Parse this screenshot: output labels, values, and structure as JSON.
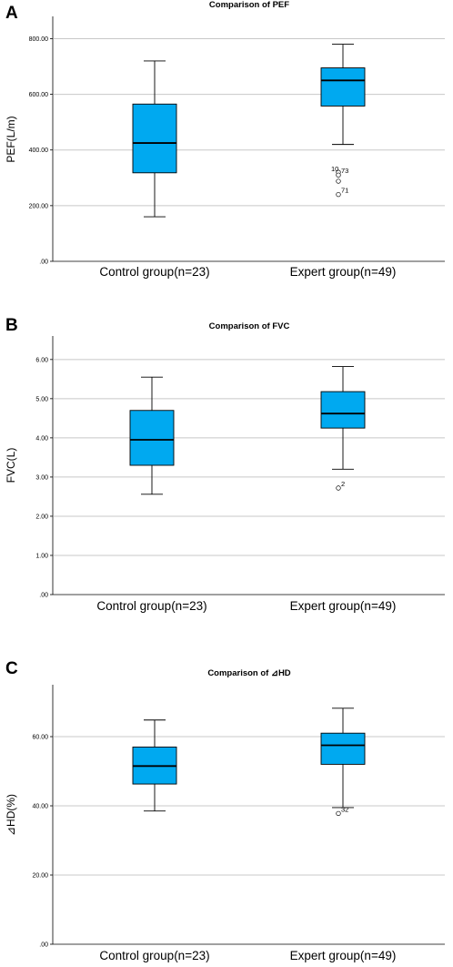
{
  "chart_data": [
    {
      "type": "box",
      "panel": "A",
      "title": "Comparison of PEF",
      "ylabel": "PEF(L/m)",
      "ylim": [
        0,
        880
      ],
      "yticks": [
        0,
        200,
        400,
        600,
        800
      ],
      "ytick_labels": [
        ".00",
        "200.00",
        "400.00",
        "600.00",
        "800.00"
      ],
      "categories": [
        "Control group(n=23)",
        "Expert group(n=49)"
      ],
      "boxes": [
        {
          "min": 160,
          "q1": 318,
          "median": 425,
          "q3": 565,
          "max": 720,
          "outliers": []
        },
        {
          "min": 420,
          "q1": 558,
          "median": 650,
          "q3": 695,
          "max": 780,
          "outliers": [
            {
              "value": 320,
              "label": "10"
            },
            {
              "value": 310,
              "label": "73"
            },
            {
              "value": 288,
              "label": ""
            },
            {
              "value": 240,
              "label": "71"
            }
          ]
        }
      ],
      "color": "#00a9f0",
      "grid": true
    },
    {
      "type": "box",
      "panel": "B",
      "title": "Comparison of FVC",
      "ylabel": "FVC(L)",
      "ylim": [
        0,
        6.6
      ],
      "yticks": [
        0,
        1,
        2,
        3,
        4,
        5,
        6
      ],
      "ytick_labels": [
        ".00",
        "1.00",
        "2.00",
        "3.00",
        "4.00",
        "5.00",
        "6.00"
      ],
      "categories": [
        "Control group(n=23)",
        "Expert group(n=49)"
      ],
      "boxes": [
        {
          "min": 2.56,
          "q1": 3.3,
          "median": 3.95,
          "q3": 4.7,
          "max": 5.55,
          "outliers": []
        },
        {
          "min": 3.2,
          "q1": 4.25,
          "median": 4.62,
          "q3": 5.18,
          "max": 5.82,
          "outliers": [
            {
              "value": 2.72,
              "label": "2"
            }
          ]
        }
      ],
      "color": "#00a9f0",
      "grid": true
    },
    {
      "type": "box",
      "panel": "C",
      "title": "Comparison of ⊿HD",
      "ylabel": "⊿HD(%)",
      "ylim": [
        0,
        75
      ],
      "yticks": [
        0,
        20,
        40,
        60
      ],
      "ytick_labels": [
        ".00",
        "20.00",
        "40.00",
        "60.00"
      ],
      "categories": [
        "Control group(n=23)",
        "Expert group(n=49)"
      ],
      "boxes": [
        {
          "min": 38.5,
          "q1": 46.3,
          "median": 51.5,
          "q3": 57,
          "max": 64.8,
          "outliers": []
        },
        {
          "min": 39.5,
          "q1": 52,
          "median": 57.5,
          "q3": 61,
          "max": 68.2,
          "outliers": [
            {
              "value": 37.8,
              "label": "32"
            }
          ]
        }
      ],
      "color": "#00a9f0",
      "grid": true
    }
  ]
}
